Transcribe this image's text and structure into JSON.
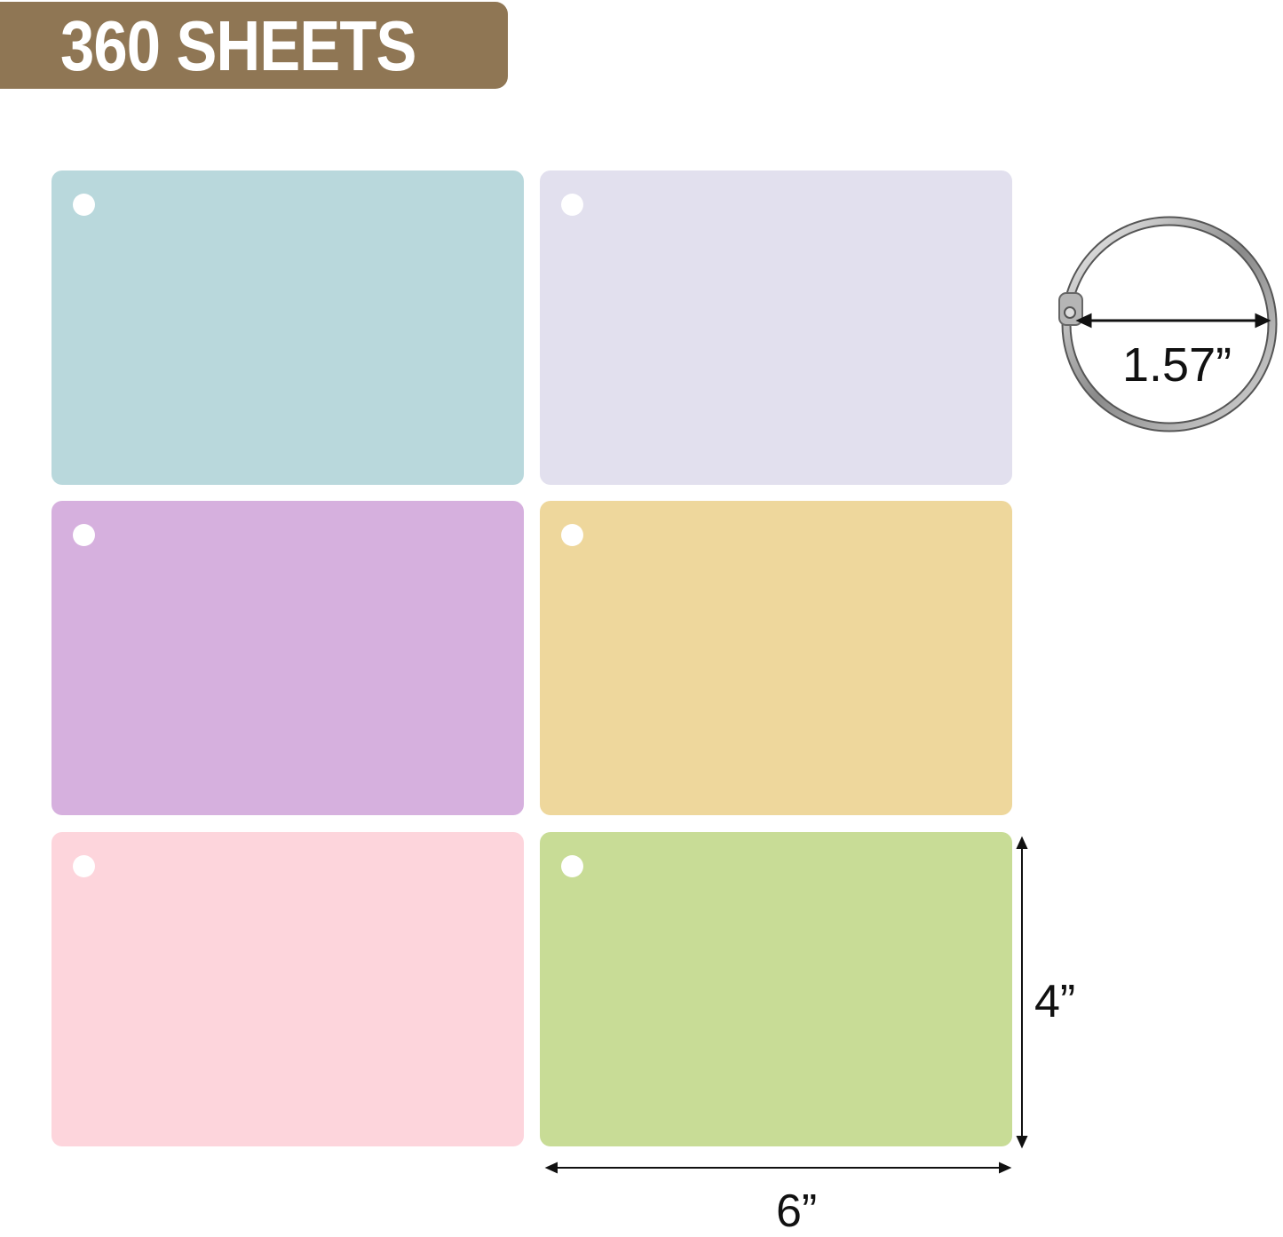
{
  "banner": {
    "text": "360 SHEETS",
    "color": "#8f7654"
  },
  "cards": [
    {
      "color": "#b9d8dc"
    },
    {
      "color": "#e2e0ee"
    },
    {
      "color": "#d6b0de"
    },
    {
      "color": "#eed79c"
    },
    {
      "color": "#fdd5dc"
    },
    {
      "color": "#c8dc96"
    }
  ],
  "ring": {
    "diameter_label": "1.57”"
  },
  "dimensions": {
    "height_label": "4”",
    "width_label": "6”"
  }
}
